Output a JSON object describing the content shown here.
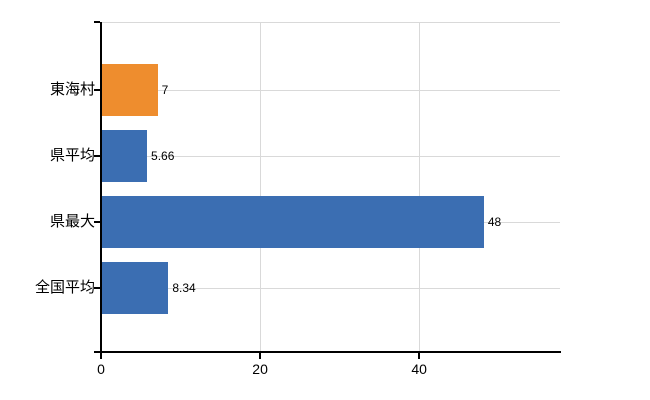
{
  "chart_data": {
    "type": "bar",
    "orientation": "horizontal",
    "title": "",
    "xlabel": "",
    "ylabel": "",
    "categories": [
      "東海村",
      "県平均",
      "県最大",
      "全国平均"
    ],
    "values": [
      7,
      5.66,
      48,
      8.34
    ],
    "value_labels": [
      "7",
      "5.66",
      "48",
      "8.34"
    ],
    "bar_colors": [
      "#ee8d2e",
      "#3b6eb2",
      "#3b6eb2",
      "#3b6eb2"
    ],
    "x_ticks": [
      0,
      20,
      40
    ],
    "x_tick_labels": [
      "0",
      "20",
      "40"
    ],
    "xlim": [
      0,
      57.7
    ],
    "grid": true,
    "legend": false,
    "colors": {
      "grid": "#d9d9d9",
      "axis": "#000000",
      "text": "#000000",
      "background": "#ffffff",
      "highlight_bar": "#ee8d2e",
      "default_bar": "#3b6eb2"
    }
  }
}
